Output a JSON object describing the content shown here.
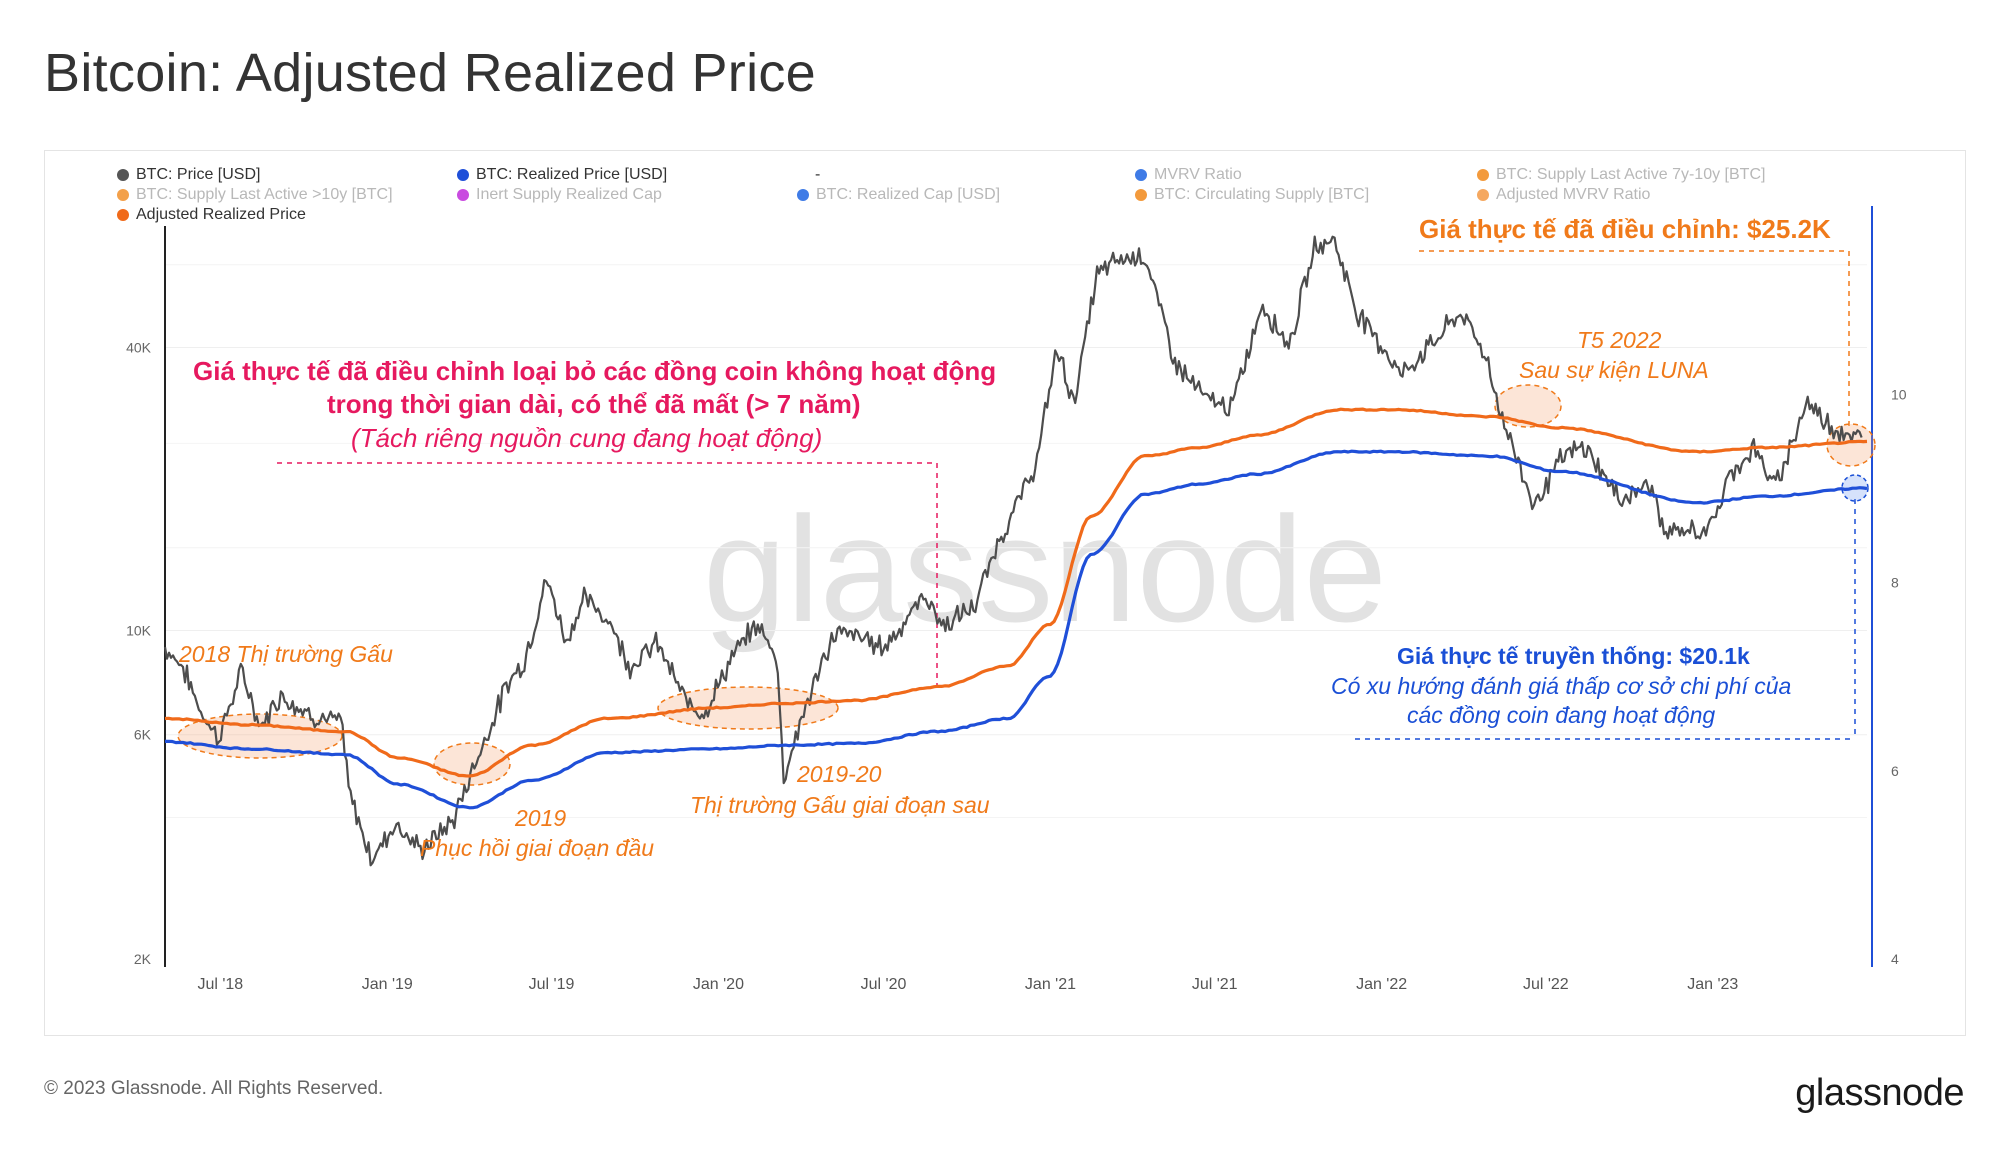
{
  "title": "Bitcoin: Adjusted Realized Price",
  "footer": {
    "copyright": "© 2023 Glassnode. All Rights Reserved.",
    "brand": "glassnode"
  },
  "watermark": "glassnode",
  "legend": [
    {
      "label": "BTC: Price [USD]",
      "color": "#555555",
      "active": true
    },
    {
      "label": "BTC: Realized Price [USD]",
      "color": "#1f4fd8",
      "active": true
    },
    {
      "label": "-",
      "color": "",
      "active": true
    },
    {
      "label": "MVRV Ratio",
      "color": "#3f7be6",
      "active": false
    },
    {
      "label": "BTC: Supply Last Active 7y-10y [BTC]",
      "color": "#f39a3c",
      "active": false
    },
    {
      "label": "BTC: Supply Last Active >10y [BTC]",
      "color": "#f3a04a",
      "active": false
    },
    {
      "label": "Inert Supply Realized Cap",
      "color": "#c94be0",
      "active": false
    },
    {
      "label": "BTC: Realized Cap [USD]",
      "color": "#3f7be6",
      "active": false
    },
    {
      "label": "BTC: Circulating Supply [BTC]",
      "color": "#f39a3c",
      "active": false
    },
    {
      "label": "Adjusted MVRV Ratio",
      "color": "#f5a860",
      "active": false
    },
    {
      "label": "Adjusted Realized Price",
      "color": "#f06a1a",
      "active": true
    }
  ],
  "annotations": {
    "main_line1": "Giá thực tế đã điều chỉnh loại bỏ các đồng coin không hoạt động",
    "main_line2": "trong thời gian dài, có thể đã mất (> 7 năm)",
    "main_line3": "(Tách riêng nguồn cung đang hoạt động)",
    "adjusted_value": "Giá thực tế đã điều chỉnh: $25.2K",
    "bear2018": "2018 Thị trường Gấu",
    "recovery2019_a": "2019",
    "recovery2019_b": "Phục hồi giai đoạn đầu",
    "bear2019_20_a": "2019-20",
    "bear2019_20_b": "Thị trường Gấu giai đoạn sau",
    "luna_a": "T5 2022",
    "luna_b": "Sau sự kiện LUNA",
    "realized_value": "Giá thực tế truyền thống: $20.1k",
    "realized_desc1": "Có xu hướng đánh giá thấp cơ sở chi phí của",
    "realized_desc2": "các đồng coin đang hoạt động"
  },
  "chart_data": {
    "type": "line",
    "title": "Bitcoin: Adjusted Realized Price",
    "x_ticks": [
      "Jul '18",
      "Jan '19",
      "Jul '19",
      "Jan '20",
      "Jul '20",
      "Jan '21",
      "Jul '21",
      "Jan '22",
      "Jul '22",
      "Jan '23"
    ],
    "y_left": {
      "scale": "log",
      "range": [
        2000,
        80000
      ],
      "ticks": [
        2000,
        6000,
        10000,
        40000
      ],
      "tick_labels": [
        "2K",
        "6K",
        "10K",
        "40K"
      ]
    },
    "y_right": {
      "scale": "linear",
      "range": [
        4,
        12
      ],
      "ticks": [
        4,
        6,
        8,
        10
      ],
      "tick_labels": [
        "4",
        "6",
        "8",
        "10"
      ]
    },
    "x_range": [
      "2018-05-01",
      "2023-06-20"
    ],
    "series": [
      {
        "name": "BTC: Price [USD]",
        "color": "#4d4d4d",
        "points": [
          [
            "2018-05-01",
            9200
          ],
          [
            "2018-05-20",
            8400
          ],
          [
            "2018-06-10",
            6700
          ],
          [
            "2018-06-29",
            5900
          ],
          [
            "2018-07-25",
            8200
          ],
          [
            "2018-08-14",
            6200
          ],
          [
            "2018-09-05",
            7300
          ],
          [
            "2018-10-10",
            6600
          ],
          [
            "2018-11-12",
            6350
          ],
          [
            "2018-11-20",
            4500
          ],
          [
            "2018-12-15",
            3250
          ],
          [
            "2019-01-10",
            3900
          ],
          [
            "2019-02-07",
            3400
          ],
          [
            "2019-03-15",
            3950
          ],
          [
            "2019-04-02",
            4900
          ],
          [
            "2019-05-15",
            7800
          ],
          [
            "2019-06-01",
            8600
          ],
          [
            "2019-06-26",
            12900
          ],
          [
            "2019-07-17",
            9500
          ],
          [
            "2019-08-06",
            11700
          ],
          [
            "2019-09-03",
            10500
          ],
          [
            "2019-09-25",
            8400
          ],
          [
            "2019-10-26",
            9400
          ],
          [
            "2019-11-25",
            7100
          ],
          [
            "2019-12-17",
            6700
          ],
          [
            "2020-01-15",
            8700
          ],
          [
            "2020-02-12",
            10300
          ],
          [
            "2020-03-05",
            8900
          ],
          [
            "2020-03-13",
            4900
          ],
          [
            "2020-04-05",
            6800
          ],
          [
            "2020-05-08",
            9900
          ],
          [
            "2020-06-05",
            9700
          ],
          [
            "2020-07-01",
            9200
          ],
          [
            "2020-07-25",
            10500
          ],
          [
            "2020-08-16",
            11900
          ],
          [
            "2020-09-05",
            10200
          ],
          [
            "2020-10-10",
            11300
          ],
          [
            "2020-11-05",
            15500
          ],
          [
            "2020-11-25",
            18500
          ],
          [
            "2020-12-17",
            22800
          ],
          [
            "2021-01-08",
            40000
          ],
          [
            "2021-01-27",
            30500
          ],
          [
            "2021-02-21",
            57000
          ],
          [
            "2021-03-13",
            61000
          ],
          [
            "2021-04-14",
            63500
          ],
          [
            "2021-05-19",
            37000
          ],
          [
            "2021-06-22",
            31000
          ],
          [
            "2021-07-20",
            29800
          ],
          [
            "2021-08-22",
            49500
          ],
          [
            "2021-09-21",
            40500
          ],
          [
            "2021-10-20",
            66000
          ],
          [
            "2021-11-10",
            68000
          ],
          [
            "2021-12-04",
            48000
          ],
          [
            "2022-01-24",
            35000
          ],
          [
            "2022-03-29",
            47500
          ],
          [
            "2022-04-25",
            39000
          ],
          [
            "2022-05-12",
            29000
          ],
          [
            "2022-06-18",
            18500
          ],
          [
            "2022-07-20",
            23500
          ],
          [
            "2022-08-14",
            24500
          ],
          [
            "2022-09-20",
            19000
          ],
          [
            "2022-10-25",
            20500
          ],
          [
            "2022-11-09",
            16000
          ],
          [
            "2022-12-30",
            16500
          ],
          [
            "2023-01-20",
            21500
          ],
          [
            "2023-02-16",
            24500
          ],
          [
            "2023-03-10",
            20000
          ],
          [
            "2023-04-14",
            30500
          ],
          [
            "2023-05-15",
            27000
          ],
          [
            "2023-06-15",
            25300
          ]
        ]
      },
      {
        "name": "BTC: Realized Price [USD]",
        "color": "#1f4fd8",
        "points": [
          [
            "2018-05-01",
            5800
          ],
          [
            "2018-08-01",
            5600
          ],
          [
            "2018-11-15",
            5450
          ],
          [
            "2019-01-15",
            4700
          ],
          [
            "2019-04-01",
            4200
          ],
          [
            "2019-06-10",
            4800
          ],
          [
            "2019-09-01",
            5500
          ],
          [
            "2019-12-31",
            5600
          ],
          [
            "2020-03-15",
            5700
          ],
          [
            "2020-06-01",
            5750
          ],
          [
            "2020-09-01",
            6100
          ],
          [
            "2020-11-15",
            6500
          ],
          [
            "2020-12-31",
            8000
          ],
          [
            "2021-02-15",
            14500
          ],
          [
            "2021-04-15",
            19500
          ],
          [
            "2021-06-15",
            20500
          ],
          [
            "2021-08-15",
            21500
          ],
          [
            "2021-11-15",
            24000
          ],
          [
            "2022-01-15",
            24000
          ],
          [
            "2022-05-01",
            23500
          ],
          [
            "2022-07-15",
            21800
          ],
          [
            "2022-12-15",
            18700
          ],
          [
            "2023-03-01",
            19300
          ],
          [
            "2023-06-20",
            20100
          ]
        ]
      },
      {
        "name": "Adjusted Realized Price",
        "color": "#f06a1a",
        "points": [
          [
            "2018-05-01",
            6500
          ],
          [
            "2018-08-01",
            6300
          ],
          [
            "2018-11-15",
            6100
          ],
          [
            "2019-01-15",
            5350
          ],
          [
            "2019-04-01",
            4900
          ],
          [
            "2019-06-10",
            5700
          ],
          [
            "2019-09-01",
            6500
          ],
          [
            "2019-12-31",
            6850
          ],
          [
            "2020-03-15",
            7000
          ],
          [
            "2020-06-01",
            7100
          ],
          [
            "2020-09-01",
            7600
          ],
          [
            "2020-11-15",
            8400
          ],
          [
            "2020-12-31",
            10300
          ],
          [
            "2021-02-15",
            17500
          ],
          [
            "2021-04-15",
            23500
          ],
          [
            "2021-06-15",
            24500
          ],
          [
            "2021-08-15",
            26000
          ],
          [
            "2021-11-15",
            29500
          ],
          [
            "2022-01-15",
            29500
          ],
          [
            "2022-05-01",
            28500
          ],
          [
            "2022-07-15",
            27000
          ],
          [
            "2022-12-15",
            24000
          ],
          [
            "2023-03-01",
            24500
          ],
          [
            "2023-06-20",
            25200
          ]
        ]
      }
    ]
  }
}
